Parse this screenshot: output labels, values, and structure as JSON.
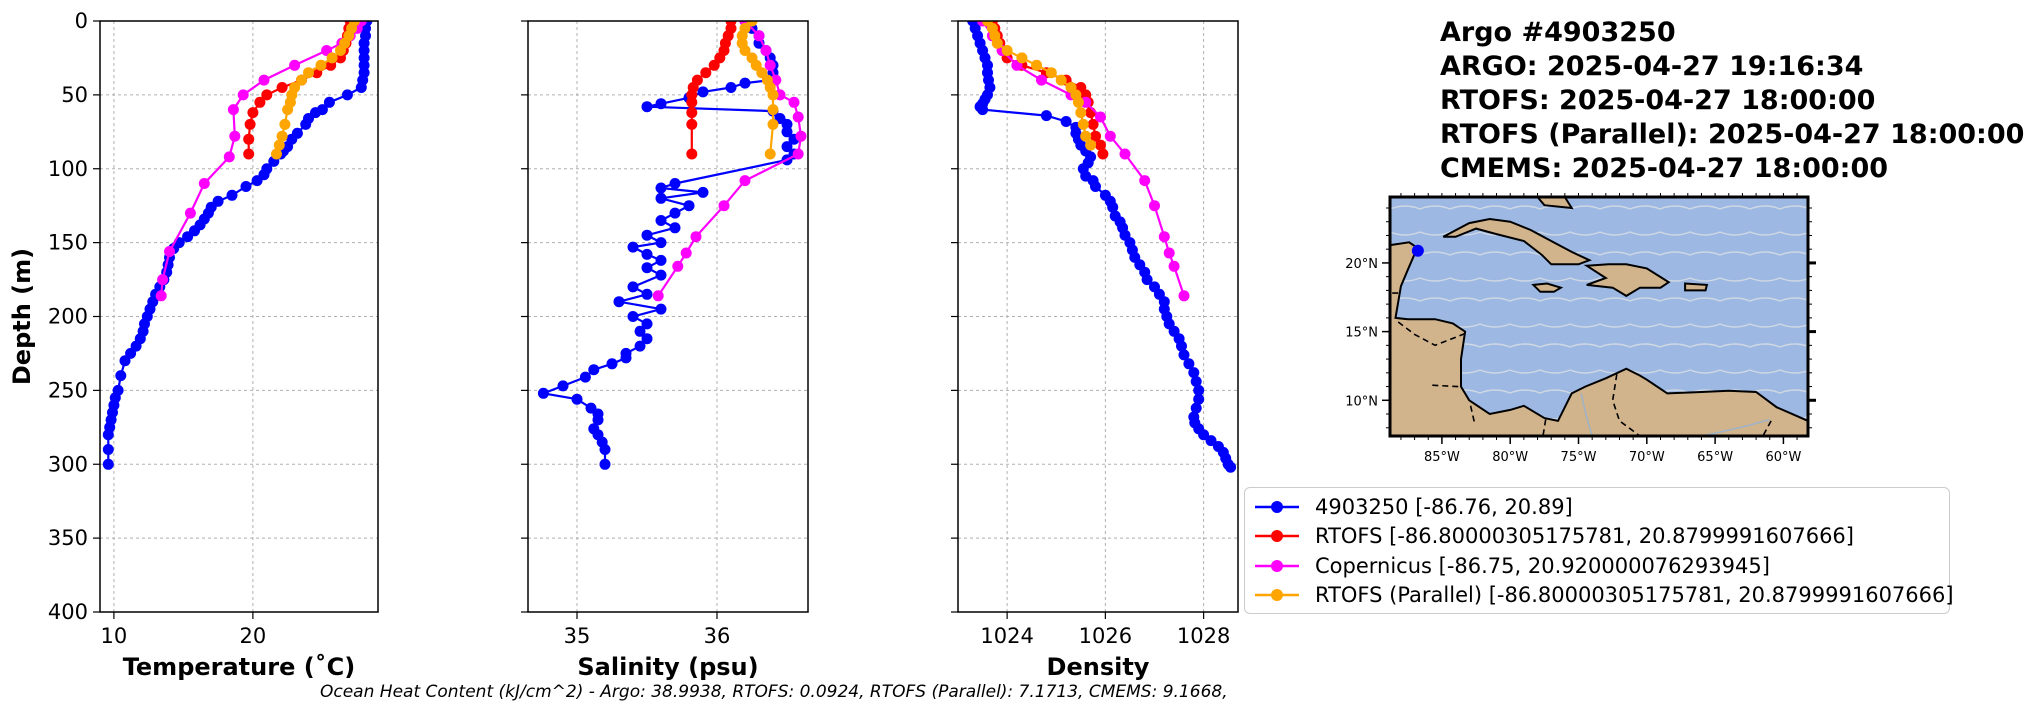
{
  "header": {
    "lines": [
      "Argo #4903250",
      "ARGO:  2025-04-27 19:16:34",
      "RTOFS: 2025-04-27 18:00:00",
      "RTOFS (Parallel): 2025-04-27 18:00:00",
      "CMEMS: 2025-04-27 18:00:00"
    ]
  },
  "footer": {
    "text": "Ocean Heat Content (kJ/cm^2) - Argo: 38.9938,  RTOFS: 0.0924,  RTOFS (Parallel): 7.1713,  CMEMS: 9.1668,"
  },
  "legend": [
    {
      "label": "4903250 [-86.76, 20.89]",
      "color": "#0000ff"
    },
    {
      "label": "RTOFS [-86.80000305175781, 20.8799991607666]",
      "color": "#ff0000"
    },
    {
      "label": "Copernicus [-86.75, 20.920000076293945]",
      "color": "#ff00ff"
    },
    {
      "label": "RTOFS (Parallel) [-86.80000305175781, 20.8799991607666]",
      "color": "#ffa500"
    }
  ],
  "colors": {
    "argo": "#0000ff",
    "rtofs": "#ff0000",
    "copernicus": "#ff00ff",
    "parallel": "#ffa500",
    "ocean": "#9db9e3",
    "land": "#d2b48c"
  },
  "chart_data": [
    {
      "type": "line",
      "xlabel": "Temperature (˚C)",
      "ylabel": "Depth (m)",
      "xlim": [
        9,
        29
      ],
      "ylim": [
        400,
        0
      ],
      "xticks": [
        "10",
        "20"
      ],
      "xtick_values": [
        10,
        20
      ],
      "yticks": [
        "0",
        "50",
        "100",
        "150",
        "200",
        "250",
        "300",
        "350",
        "400"
      ],
      "ytick_values": [
        0,
        50,
        100,
        150,
        200,
        250,
        300,
        350,
        400
      ],
      "series": [
        {
          "name": "4903250",
          "key": "argo",
          "x": [
            28.2,
            28.1,
            28.1,
            28.0,
            28.0,
            28.0,
            28.0,
            28.0,
            27.9,
            27.8,
            26.8,
            25.5,
            25.0,
            24.5,
            24.0,
            23.8,
            23.2,
            22.8,
            22.5,
            22.2,
            22.0,
            21.5,
            21.0,
            20.8,
            20.3,
            19.5,
            18.5,
            17.5,
            17.0,
            16.8,
            16.5,
            16.2,
            15.8,
            15.3,
            14.7,
            14.3,
            14.0,
            13.9,
            13.8,
            13.6,
            13.3,
            13.0,
            12.8,
            12.6,
            12.4,
            12.2,
            12.1,
            11.9,
            11.6,
            11.2,
            10.8,
            10.5,
            10.3,
            10.1,
            10.0,
            9.9,
            9.8,
            9.7,
            9.6,
            9.6,
            9.6
          ],
          "y": [
            0,
            5,
            10,
            15,
            20,
            25,
            30,
            35,
            40,
            45,
            50,
            55,
            60,
            62,
            66,
            70,
            76,
            80,
            85,
            88,
            90,
            95,
            100,
            104,
            108,
            112,
            118,
            122,
            126,
            130,
            134,
            138,
            142,
            146,
            150,
            154,
            160,
            165,
            170,
            175,
            180,
            185,
            190,
            195,
            200,
            205,
            210,
            215,
            220,
            225,
            230,
            240,
            250,
            255,
            260,
            265,
            270,
            275,
            280,
            290,
            300
          ]
        },
        {
          "name": "RTOFS",
          "key": "rtofs",
          "x": [
            27.0,
            26.9,
            26.8,
            26.7,
            26.5,
            26.3,
            25.6,
            24.6,
            23.5,
            22.1,
            21.0,
            20.5,
            20.0,
            19.8,
            19.7,
            19.7
          ],
          "y": [
            0,
            5,
            10,
            15,
            20,
            25,
            30,
            35,
            40,
            45,
            50,
            55,
            62,
            70,
            80,
            90
          ]
        },
        {
          "name": "Copernicus",
          "key": "copernicus",
          "x": [
            27.8,
            27.5,
            27.0,
            26.4,
            25.3,
            23.0,
            20.8,
            19.3,
            18.6,
            18.7,
            18.3,
            16.5,
            15.5,
            14.0,
            13.5,
            13.4
          ],
          "y": [
            0,
            5,
            10,
            15,
            20,
            30,
            40,
            50,
            60,
            78,
            92,
            110,
            130,
            156,
            175,
            186
          ]
        },
        {
          "name": "RTOFS (Parallel)",
          "key": "parallel",
          "x": [
            27.3,
            27.1,
            26.9,
            26.6,
            26.3,
            25.7,
            24.9,
            24.0,
            23.5,
            23.0,
            22.8,
            22.7,
            22.5,
            22.3,
            22.1,
            21.9,
            21.7
          ],
          "y": [
            0,
            5,
            10,
            15,
            20,
            25,
            30,
            35,
            40,
            45,
            50,
            55,
            60,
            70,
            78,
            84,
            90
          ]
        }
      ]
    },
    {
      "type": "line",
      "xlabel": "Salinity (psu)",
      "ylabel": "",
      "xlim": [
        34.65,
        36.65
      ],
      "ylim": [
        400,
        0
      ],
      "xticks": [
        "35",
        "36"
      ],
      "xtick_values": [
        35,
        36
      ],
      "series": [
        {
          "name": "4903250",
          "key": "argo",
          "x": [
            36.2,
            36.25,
            36.3,
            36.3,
            36.35,
            36.38,
            36.4,
            36.4,
            36.38,
            36.2,
            36.1,
            35.9,
            35.8,
            35.6,
            35.5,
            36.4,
            36.45,
            36.5,
            36.5,
            36.55,
            36.5,
            36.55,
            36.5,
            35.7,
            35.6,
            35.9,
            35.6,
            35.8,
            35.7,
            35.6,
            35.7,
            35.5,
            35.6,
            35.4,
            35.5,
            35.6,
            35.5,
            35.6,
            35.4,
            35.5,
            35.3,
            35.6,
            35.4,
            35.5,
            35.45,
            35.5,
            35.45,
            35.35,
            35.35,
            35.25,
            35.12,
            35.06,
            34.9,
            34.76,
            35.0,
            35.1,
            35.15,
            35.15,
            35.12,
            35.15,
            35.18,
            35.2,
            35.2
          ],
          "y": [
            0,
            5,
            10,
            15,
            20,
            25,
            30,
            35,
            40,
            42,
            45,
            48,
            52,
            56,
            58,
            61,
            66,
            70,
            75,
            80,
            85,
            90,
            94,
            110,
            113,
            116,
            120,
            125,
            130,
            135,
            140,
            145,
            150,
            153,
            158,
            162,
            167,
            172,
            180,
            185,
            190,
            195,
            200,
            205,
            210,
            215,
            220,
            225,
            228,
            232,
            236,
            241,
            247,
            252,
            256,
            262,
            266,
            270,
            276,
            280,
            285,
            290,
            300
          ]
        },
        {
          "name": "RTOFS",
          "key": "rtofs",
          "x": [
            36.1,
            36.1,
            36.08,
            36.06,
            36.05,
            36.02,
            35.98,
            35.92,
            35.86,
            35.83,
            35.82,
            35.82,
            35.82,
            35.82,
            35.82
          ],
          "y": [
            0,
            5,
            10,
            15,
            20,
            25,
            30,
            35,
            40,
            45,
            50,
            55,
            62,
            70,
            90
          ]
        },
        {
          "name": "Copernicus",
          "key": "copernicus",
          "x": [
            36.2,
            36.3,
            36.35,
            36.38,
            36.42,
            36.45,
            36.55,
            36.58,
            36.6,
            36.58,
            36.2,
            36.05,
            35.85,
            35.78,
            35.72,
            35.58
          ],
          "y": [
            0,
            10,
            20,
            30,
            40,
            50,
            55,
            65,
            78,
            90,
            108,
            125,
            146,
            157,
            166,
            186
          ]
        },
        {
          "name": "RTOFS (Parallel)",
          "key": "parallel",
          "x": [
            36.25,
            36.2,
            36.18,
            36.18,
            36.2,
            36.25,
            36.28,
            36.32,
            36.36,
            36.38,
            36.4,
            36.4,
            36.4,
            36.38
          ],
          "y": [
            0,
            5,
            10,
            15,
            20,
            25,
            30,
            35,
            40,
            45,
            50,
            60,
            70,
            90
          ]
        }
      ]
    },
    {
      "type": "line",
      "xlabel": "Density",
      "ylabel": "",
      "xlim": [
        1023,
        1028.7
      ],
      "ylim": [
        400,
        0
      ],
      "xticks": [
        "1024",
        "1026",
        "1028"
      ],
      "xtick_values": [
        1024,
        1026,
        1028
      ],
      "series": [
        {
          "name": "4903250",
          "key": "argo",
          "x": [
            1023.3,
            1023.35,
            1023.4,
            1023.45,
            1023.5,
            1023.55,
            1023.6,
            1023.6,
            1023.62,
            1023.65,
            1023.6,
            1023.55,
            1023.5,
            1023.45,
            1023.5,
            1024.8,
            1025.2,
            1025.4,
            1025.4,
            1025.45,
            1025.5,
            1025.6,
            1025.7,
            1025.65,
            1025.55,
            1025.6,
            1025.75,
            1025.8,
            1026.0,
            1026.1,
            1026.15,
            1026.2,
            1026.3,
            1026.35,
            1026.4,
            1026.5,
            1026.55,
            1026.6,
            1026.7,
            1026.8,
            1026.85,
            1027.0,
            1027.1,
            1027.2,
            1027.2,
            1027.25,
            1027.3,
            1027.4,
            1027.5,
            1027.55,
            1027.6,
            1027.7,
            1027.8,
            1027.85,
            1027.9,
            1027.9,
            1027.85,
            1027.8,
            1027.82,
            1027.9,
            1028.0,
            1028.15,
            1028.3,
            1028.4,
            1028.45,
            1028.5,
            1028.55
          ],
          "y": [
            0,
            5,
            10,
            15,
            20,
            25,
            30,
            35,
            40,
            45,
            50,
            53,
            56,
            58,
            60,
            64,
            68,
            72,
            76,
            80,
            84,
            88,
            92,
            96,
            100,
            105,
            108,
            112,
            118,
            122,
            126,
            132,
            136,
            140,
            145,
            150,
            155,
            160,
            165,
            170,
            175,
            180,
            185,
            190,
            195,
            200,
            205,
            210,
            215,
            220,
            226,
            232,
            238,
            244,
            250,
            256,
            262,
            268,
            272,
            276,
            280,
            284,
            288,
            292,
            296,
            300,
            302
          ]
        },
        {
          "name": "RTOFS",
          "key": "rtofs",
          "x": [
            1023.7,
            1023.75,
            1023.8,
            1023.85,
            1023.9,
            1024.0,
            1024.3,
            1024.8,
            1025.2,
            1025.5,
            1025.6,
            1025.65,
            1025.7,
            1025.75,
            1025.8,
            1025.9,
            1025.95
          ],
          "y": [
            0,
            5,
            10,
            15,
            20,
            25,
            30,
            35,
            40,
            45,
            50,
            55,
            62,
            70,
            78,
            84,
            90
          ]
        },
        {
          "name": "Copernicus",
          "key": "copernicus",
          "x": [
            1023.5,
            1023.7,
            1023.9,
            1024.2,
            1024.7,
            1025.3,
            1025.6,
            1025.9,
            1026.1,
            1026.4,
            1026.8,
            1027.0,
            1027.2,
            1027.3,
            1027.4,
            1027.6
          ],
          "y": [
            0,
            10,
            20,
            30,
            40,
            50,
            55,
            65,
            78,
            90,
            108,
            125,
            146,
            157,
            166,
            186
          ]
        },
        {
          "name": "RTOFS (Parallel)",
          "key": "parallel",
          "x": [
            1023.6,
            1023.7,
            1023.75,
            1023.8,
            1024.0,
            1024.3,
            1024.6,
            1024.9,
            1025.1,
            1025.3,
            1025.4,
            1025.45,
            1025.5,
            1025.55,
            1025.6,
            1025.7
          ],
          "y": [
            0,
            5,
            10,
            15,
            20,
            25,
            30,
            35,
            40,
            45,
            50,
            55,
            62,
            70,
            78,
            84
          ]
        }
      ]
    }
  ],
  "map": {
    "lat_ticks": [
      "20°N",
      "15°N",
      "10°N"
    ],
    "lat_values": [
      20,
      15,
      10
    ],
    "lon_ticks": [
      "85°W",
      "80°W",
      "75°W",
      "70°W",
      "65°W",
      "60°W"
    ],
    "lon_values": [
      -85,
      -80,
      -75,
      -70,
      -65,
      -60
    ],
    "bounds": {
      "lon": [
        -88.8,
        -58.2
      ],
      "lat": [
        7.4,
        24.8
      ]
    },
    "float_position": {
      "lon": -86.76,
      "lat": 20.89
    }
  }
}
